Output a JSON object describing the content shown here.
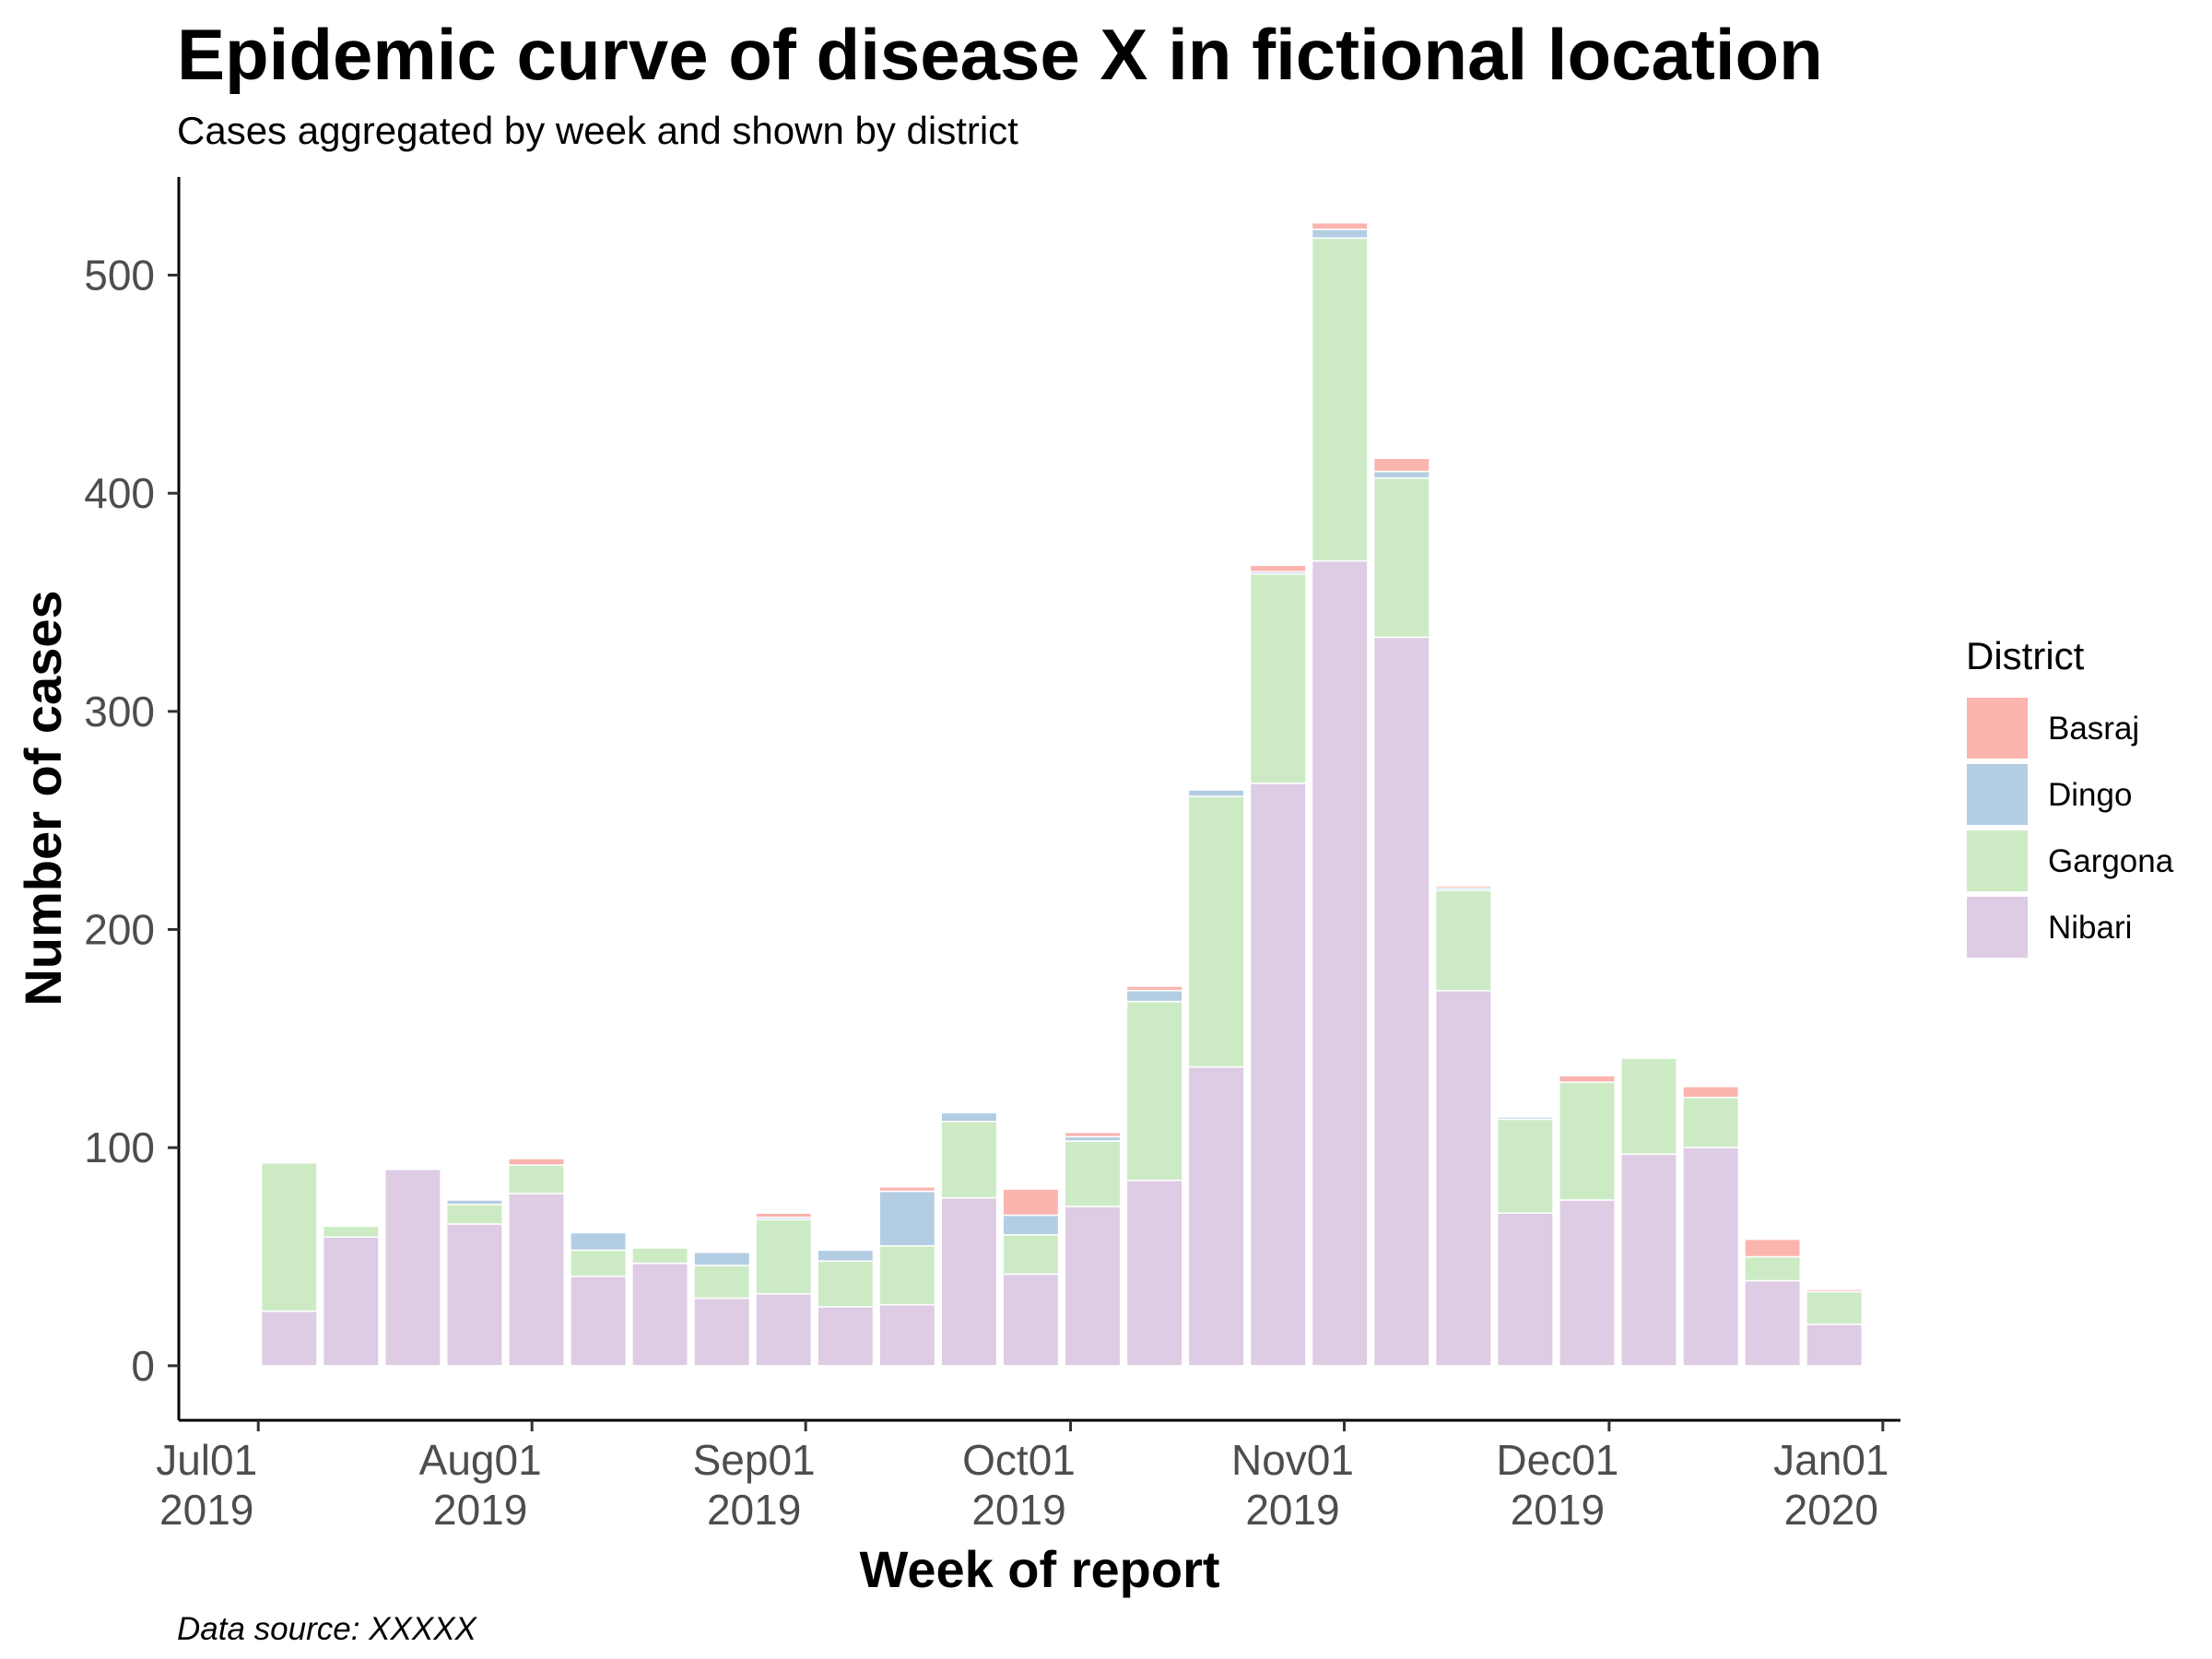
{
  "chart_data": {
    "type": "bar",
    "stacked": true,
    "title": "Epidemic curve of disease X in fictional location",
    "subtitle": "Cases aggregated by week and shown by district",
    "xlabel": "Week of report",
    "ylabel": "Number of cases",
    "caption": "Data source: XXXXX",
    "legend_title": "District",
    "legend_position": "right",
    "grid": false,
    "ylim": [
      -25,
      545
    ],
    "yticks": [
      0,
      100,
      200,
      300,
      400,
      500
    ],
    "xlim": [
      "2019-06-22",
      "2020-01-03"
    ],
    "x_ticks": [
      {
        "date": "2019-07-01",
        "line1": "Jul01",
        "line2": "2019"
      },
      {
        "date": "2019-08-01",
        "line1": "Aug01",
        "line2": "2019"
      },
      {
        "date": "2019-09-01",
        "line1": "Sep01",
        "line2": "2019"
      },
      {
        "date": "2019-10-01",
        "line1": "Oct01",
        "line2": "2019"
      },
      {
        "date": "2019-11-01",
        "line1": "Nov01",
        "line2": "2019"
      },
      {
        "date": "2019-12-01",
        "line1": "Dec01",
        "line2": "2019"
      },
      {
        "date": "2020-01-01",
        "line1": "Jan01",
        "line2": "2020"
      }
    ],
    "x": [
      "2019-07-01",
      "2019-07-08",
      "2019-07-15",
      "2019-07-22",
      "2019-07-29",
      "2019-08-05",
      "2019-08-12",
      "2019-08-19",
      "2019-08-26",
      "2019-09-02",
      "2019-09-09",
      "2019-09-16",
      "2019-09-23",
      "2019-09-30",
      "2019-10-07",
      "2019-10-14",
      "2019-10-21",
      "2019-10-28",
      "2019-11-04",
      "2019-11-11",
      "2019-11-18",
      "2019-11-25",
      "2019-12-02",
      "2019-12-09",
      "2019-12-16",
      "2019-12-23"
    ],
    "series": [
      {
        "name": "Nibari",
        "color": "#DECBE4",
        "values": [
          25,
          59,
          90,
          65,
          79,
          41,
          47,
          31,
          33,
          27,
          28,
          77,
          42,
          73,
          85,
          137,
          267,
          369,
          334,
          172,
          70,
          76,
          97,
          100,
          39,
          19
        ]
      },
      {
        "name": "Gargona",
        "color": "#CCEBC5",
        "values": [
          68,
          5,
          0,
          9,
          13,
          12,
          7,
          15,
          34,
          21,
          27,
          35,
          18,
          30,
          82,
          124,
          96,
          148,
          73,
          46,
          43,
          54,
          44,
          23,
          11,
          15
        ]
      },
      {
        "name": "Dingo",
        "color": "#B3CDE3",
        "values": [
          0,
          0,
          0,
          2,
          0,
          8,
          0,
          6,
          1,
          5,
          25,
          4,
          9,
          2,
          5,
          3,
          1,
          4,
          3,
          1,
          1,
          0,
          0,
          0,
          0,
          0
        ]
      },
      {
        "name": "Basraj",
        "color": "#FBB4AE",
        "values": [
          0,
          0,
          0,
          0,
          3,
          0,
          0,
          0,
          2,
          0,
          2,
          0,
          12,
          2,
          2,
          0,
          3,
          3,
          6,
          1,
          0,
          3,
          0,
          5,
          8,
          1
        ]
      }
    ]
  },
  "legend": [
    {
      "name": "Basraj",
      "color": "#FBB4AE"
    },
    {
      "name": "Dingo",
      "color": "#B3CDE3"
    },
    {
      "name": "Gargona",
      "color": "#CCEBC5"
    },
    {
      "name": "Nibari",
      "color": "#DECBE4"
    }
  ]
}
